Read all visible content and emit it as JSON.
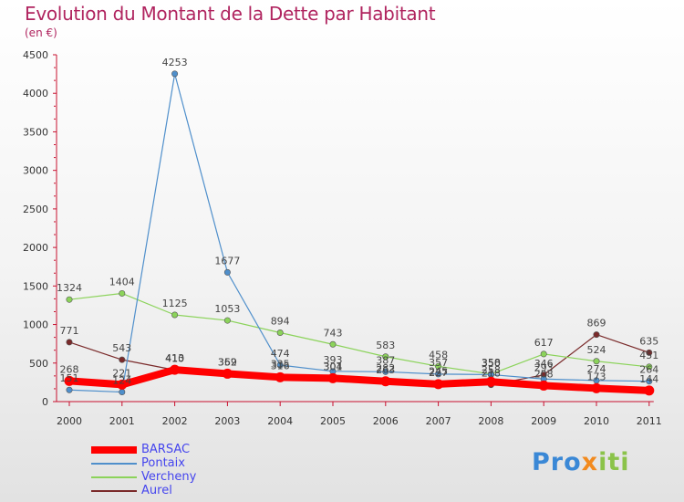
{
  "chart_data": {
    "type": "line",
    "title": "Evolution du Montant de la Dette par Habitant",
    "subtitle": "(en €)",
    "xlabel": "",
    "ylabel": "",
    "categories": [
      "2000",
      "2001",
      "2002",
      "2003",
      "2004",
      "2005",
      "2006",
      "2007",
      "2008",
      "2009",
      "2010",
      "2011"
    ],
    "ylim": [
      0,
      4500
    ],
    "yticks": [
      0,
      500,
      1000,
      1500,
      2000,
      2500,
      3000,
      3500,
      4000,
      4500
    ],
    "grid": false,
    "legend_position": "bottom-left",
    "series": [
      {
        "name": "BARSAC",
        "color": "#ff0000",
        "values": [
          268,
          221,
          413,
          362,
          316,
          304,
          263,
          227,
          258,
          208,
          173,
          144
        ]
      },
      {
        "name": "Pontaix",
        "color": "#4f8fcb",
        "values": [
          151,
          124,
          4253,
          1677,
          474,
          393,
          387,
          357,
          350,
          293,
          274,
          264
        ]
      },
      {
        "name": "Vercheny",
        "color": "#8bd35a",
        "values": [
          1324,
          1404,
          1125,
          1053,
          894,
          743,
          583,
          458,
          358,
          617,
          524,
          451
        ]
      },
      {
        "name": "Aurel",
        "color": "#7a2a2a",
        "values": [
          771,
          543,
          410,
          359,
          335,
          301,
          282,
          245,
          218,
          346,
          869,
          635
        ]
      }
    ],
    "point_labels": [
      {
        "text": "268",
        "year": "2000",
        "value": 268
      },
      {
        "text": "151",
        "year": "2000",
        "value": 151
      },
      {
        "text": "1324",
        "year": "2000",
        "value": 1324
      },
      {
        "text": "771",
        "year": "2000",
        "value": 771
      },
      {
        "text": "221",
        "year": "2001",
        "value": 221
      },
      {
        "text": "124",
        "year": "2001",
        "value": 124
      },
      {
        "text": "1404",
        "year": "2001",
        "value": 1404
      },
      {
        "text": "543",
        "year": "2001",
        "value": 543
      },
      {
        "text": "413",
        "year": "2002",
        "value": 413
      },
      {
        "text": "4253",
        "year": "2002",
        "value": 4253
      },
      {
        "text": "1125",
        "year": "2002",
        "value": 1125
      },
      {
        "text": "410",
        "year": "2002",
        "value": 410
      },
      {
        "text": "362",
        "year": "2003",
        "value": 362
      },
      {
        "text": "1677",
        "year": "2003",
        "value": 1677
      },
      {
        "text": "1053",
        "year": "2003",
        "value": 1053
      },
      {
        "text": "359",
        "year": "2003",
        "value": 359
      },
      {
        "text": "316",
        "year": "2004",
        "value": 316
      },
      {
        "text": "474",
        "year": "2004",
        "value": 474
      },
      {
        "text": "894",
        "year": "2004",
        "value": 894
      },
      {
        "text": "335",
        "year": "2004",
        "value": 335
      },
      {
        "text": "304",
        "year": "2005",
        "value": 304
      },
      {
        "text": "393",
        "year": "2005",
        "value": 393
      },
      {
        "text": "743",
        "year": "2005",
        "value": 743
      },
      {
        "text": "301",
        "year": "2005",
        "value": 301
      },
      {
        "text": "263",
        "year": "2006",
        "value": 263
      },
      {
        "text": "387",
        "year": "2006",
        "value": 387
      },
      {
        "text": "583",
        "year": "2006",
        "value": 583
      },
      {
        "text": "282",
        "year": "2006",
        "value": 282
      },
      {
        "text": "227",
        "year": "2007",
        "value": 227
      },
      {
        "text": "357",
        "year": "2007",
        "value": 357
      },
      {
        "text": "458",
        "year": "2007",
        "value": 458
      },
      {
        "text": "245",
        "year": "2007",
        "value": 245
      },
      {
        "text": "258",
        "year": "2008",
        "value": 258
      },
      {
        "text": "350",
        "year": "2008",
        "value": 350
      },
      {
        "text": "358",
        "year": "2008",
        "value": 358
      },
      {
        "text": "218",
        "year": "2008",
        "value": 218
      },
      {
        "text": "208",
        "year": "2009",
        "value": 208
      },
      {
        "text": "293",
        "year": "2009",
        "value": 293
      },
      {
        "text": "617",
        "year": "2009",
        "value": 617
      },
      {
        "text": "346",
        "year": "2009",
        "value": 346
      },
      {
        "text": "173",
        "year": "2010",
        "value": 173
      },
      {
        "text": "274",
        "year": "2010",
        "value": 274
      },
      {
        "text": "524",
        "year": "2010",
        "value": 524
      },
      {
        "text": "869",
        "year": "2010",
        "value": 869
      },
      {
        "text": "144",
        "year": "2011",
        "value": 144
      },
      {
        "text": "264",
        "year": "2011",
        "value": 264
      },
      {
        "text": "451",
        "year": "2011",
        "value": 451
      },
      {
        "text": "635",
        "year": "2011",
        "value": 635
      }
    ]
  },
  "logo": {
    "part1": "Pro",
    "part2": "x",
    "part3": "iti"
  }
}
